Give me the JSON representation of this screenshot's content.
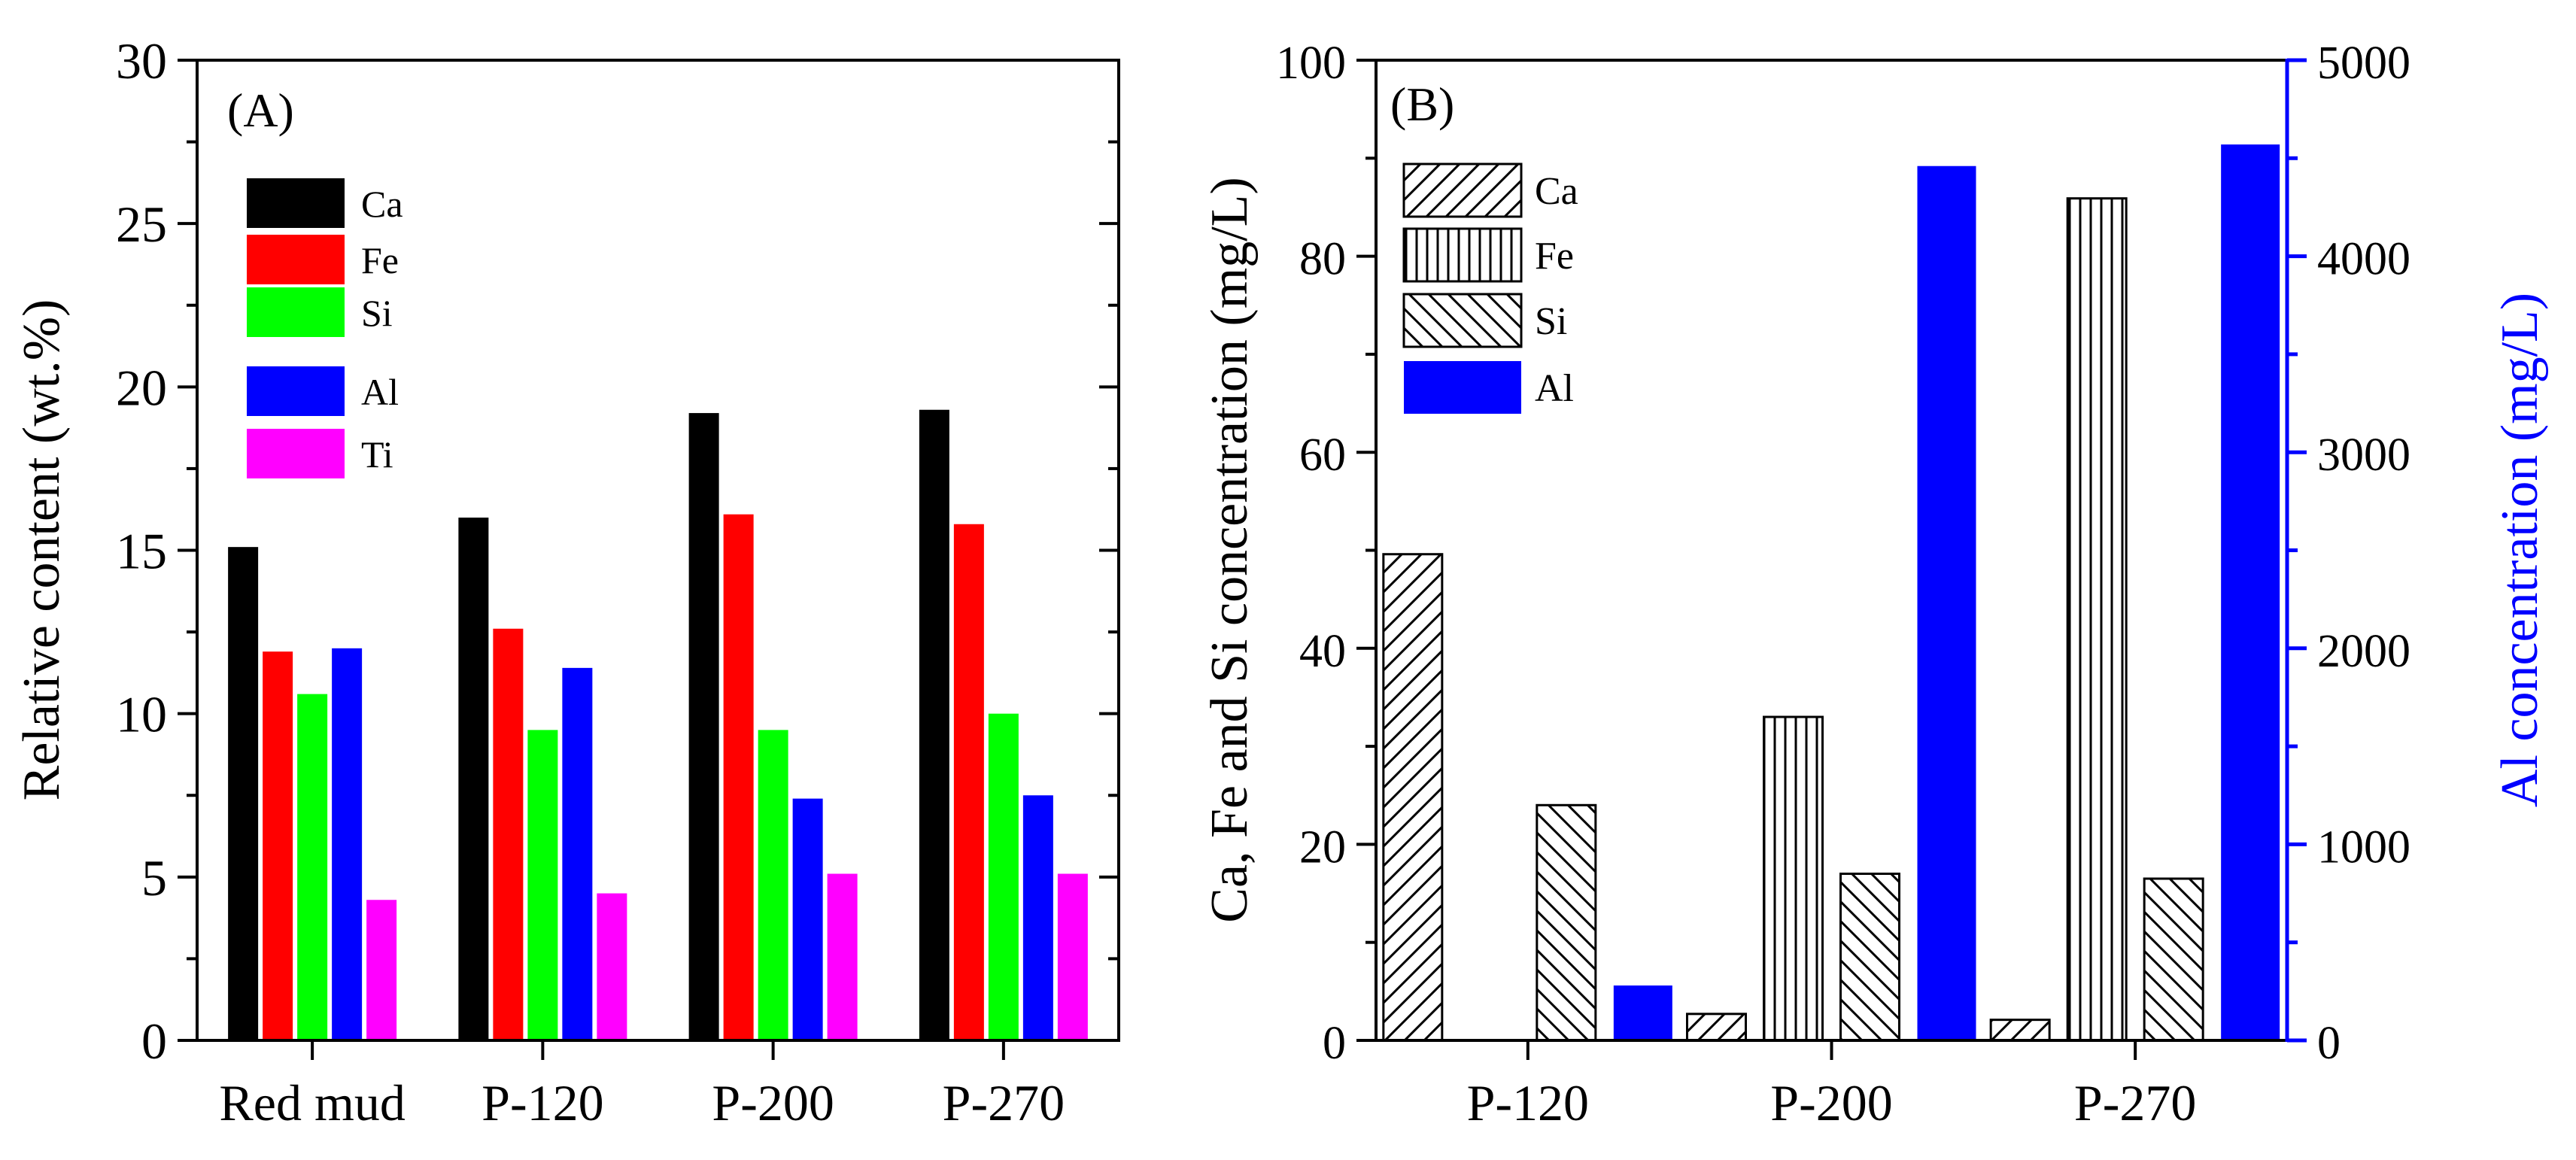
{
  "chart_data": [
    {
      "panel": "(A)",
      "type": "bar",
      "categories": [
        "Red mud",
        "P-120",
        "P-200",
        "P-270"
      ],
      "ylabel": "Relative content (wt.%)",
      "ylim": [
        0,
        30
      ],
      "yticks": [
        0,
        5,
        10,
        15,
        20,
        25,
        30
      ],
      "series": [
        {
          "name": "Ca",
          "color": "#000000",
          "values": [
            15.1,
            16.0,
            19.2,
            19.3
          ]
        },
        {
          "name": "Fe",
          "color": "#ff0000",
          "values": [
            11.9,
            12.6,
            16.1,
            15.8
          ]
        },
        {
          "name": "Si",
          "color": "#00ff00",
          "values": [
            10.6,
            9.5,
            9.5,
            10.0
          ]
        },
        {
          "name": "Al",
          "color": "#0000ff",
          "values": [
            12.0,
            11.4,
            7.4,
            7.5
          ]
        },
        {
          "name": "Ti",
          "color": "#ff00ff",
          "values": [
            4.3,
            4.5,
            5.1,
            5.1
          ]
        }
      ],
      "legend": "top-left"
    },
    {
      "panel": "(B)",
      "type": "bar",
      "categories": [
        "P-120",
        "P-200",
        "P-270"
      ],
      "ylabel": "Ca, Fe and Si concentration (mg/L)",
      "ylim": [
        0,
        100
      ],
      "yticks": [
        0,
        20,
        40,
        60,
        80,
        100
      ],
      "y2label": "Al concentration (mg/L)",
      "y2lim": [
        0,
        5000
      ],
      "y2ticks": [
        0,
        1000,
        2000,
        3000,
        4000,
        5000
      ],
      "y2color": "#0000ff",
      "series": [
        {
          "name": "Ca",
          "pattern": "diag-up",
          "axis": "left",
          "values": [
            49.6,
            2.7,
            2.1
          ]
        },
        {
          "name": "Fe",
          "pattern": "vertical",
          "axis": "left",
          "values": [
            0,
            33.0,
            85.9
          ]
        },
        {
          "name": "Si",
          "pattern": "diag-down",
          "axis": "left",
          "values": [
            24.0,
            17.0,
            16.5
          ]
        },
        {
          "name": "Al",
          "pattern": "solid",
          "color": "#0000ff",
          "axis": "right",
          "values": [
            280,
            4460,
            4570
          ]
        }
      ],
      "legend": "top-left"
    }
  ]
}
